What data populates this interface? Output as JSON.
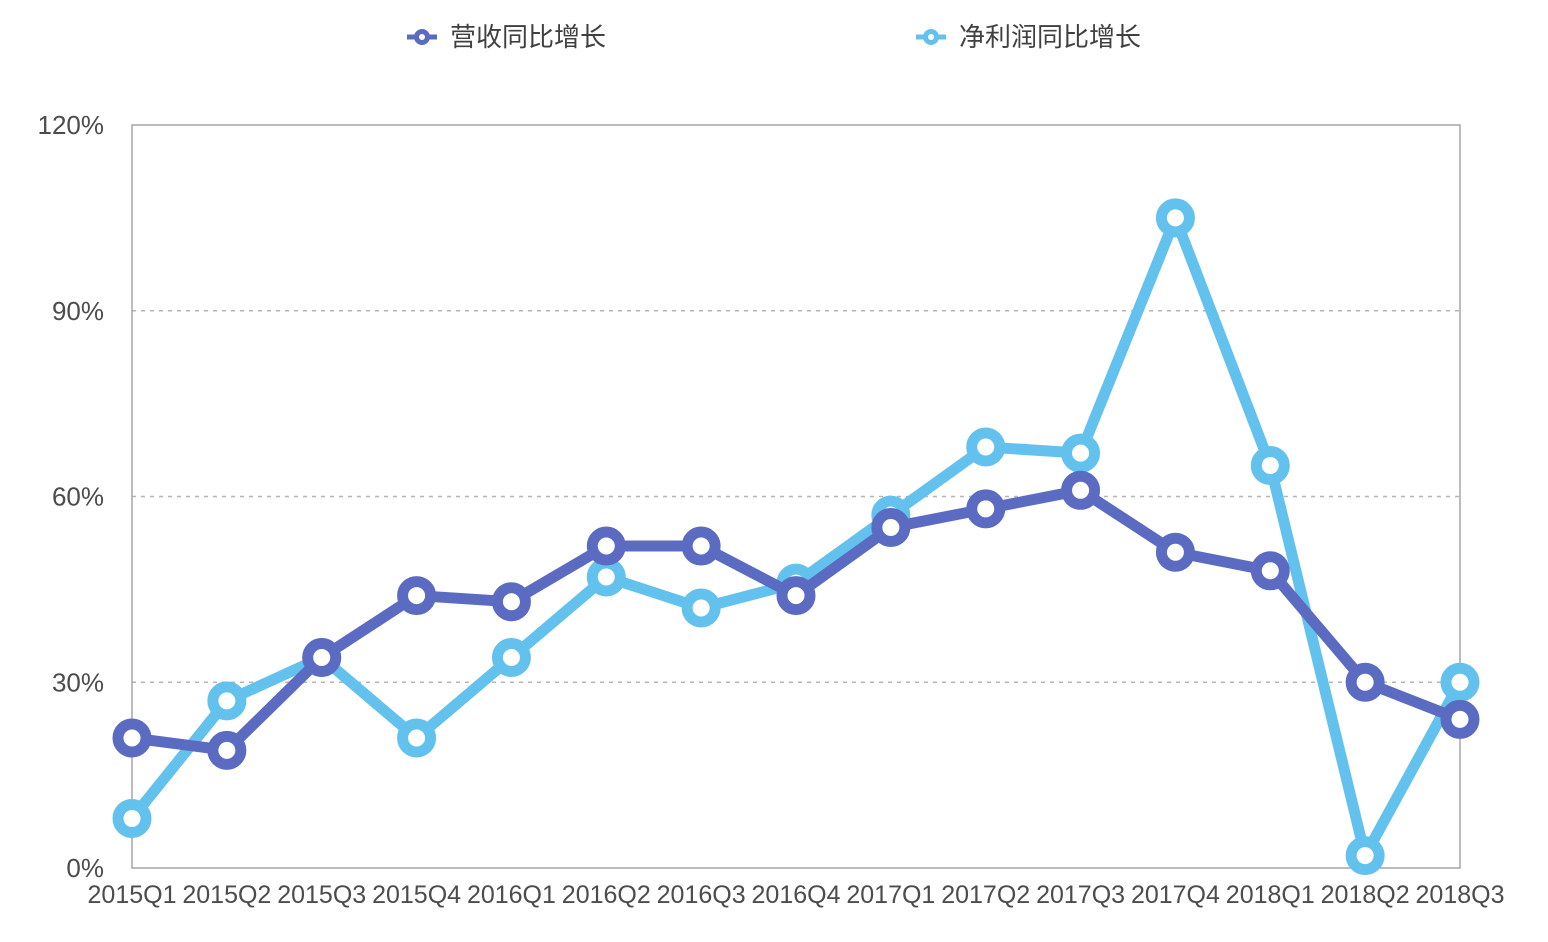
{
  "chart_data": {
    "type": "line",
    "title": "",
    "categories": [
      "2015Q1",
      "2015Q2",
      "2015Q3",
      "2015Q4",
      "2016Q1",
      "2016Q2",
      "2016Q3",
      "2016Q4",
      "2017Q1",
      "2017Q2",
      "2017Q3",
      "2017Q4",
      "2018Q1",
      "2018Q2",
      "2018Q3"
    ],
    "series": [
      {
        "key": "revenue",
        "name": "营收同比增长",
        "color": "#5c6bc2",
        "marker": "open-circle",
        "values": [
          21,
          19,
          34,
          44,
          43,
          52,
          52,
          44,
          55,
          58,
          61,
          51,
          48,
          30,
          24
        ]
      },
      {
        "key": "net-profit",
        "name": "净利润同比增长",
        "color": "#63c1ee",
        "marker": "open-circle",
        "values": [
          8,
          27,
          34,
          21,
          34,
          47,
          42,
          46,
          57,
          68,
          67,
          105,
          65,
          2,
          30
        ]
      }
    ],
    "xlabel": "",
    "ylabel": "",
    "ylim": [
      0,
      120
    ],
    "y_ticks": [
      0,
      30,
      60,
      90,
      120
    ],
    "y_tick_labels": [
      "0%",
      "30%",
      "60%",
      "90%",
      "120%"
    ],
    "grid": "horizontal-dashed",
    "legend_position": "top",
    "unit": "percent"
  }
}
